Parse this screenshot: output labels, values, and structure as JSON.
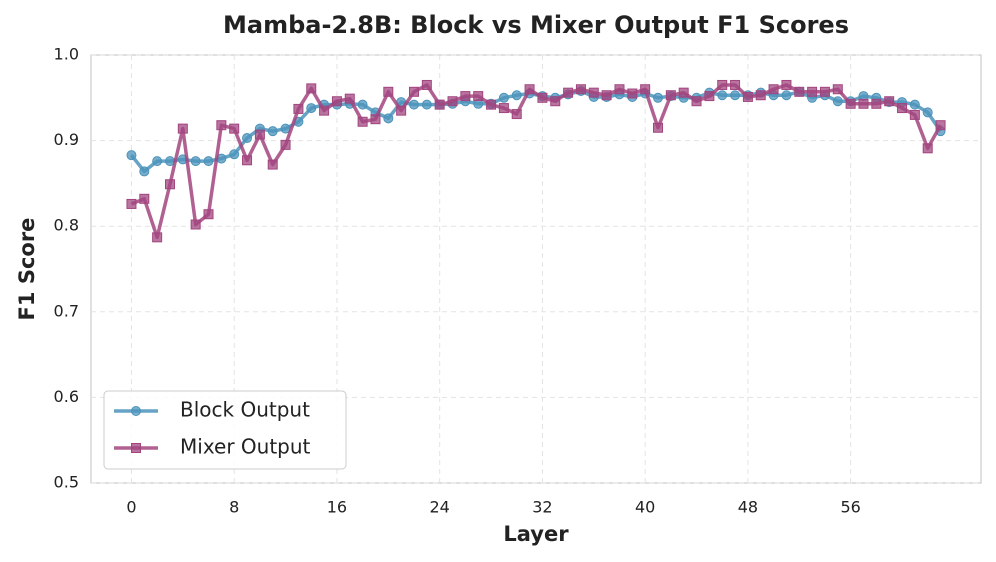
{
  "chart_data": {
    "type": "line",
    "title": "Mamba-2.8B: Block vs Mixer Output F1 Scores",
    "x_label": "Layer",
    "y_label": "F1 Score",
    "x": [
      0,
      1,
      2,
      3,
      4,
      5,
      6,
      7,
      8,
      9,
      10,
      11,
      12,
      13,
      14,
      15,
      16,
      17,
      18,
      19,
      20,
      21,
      22,
      23,
      24,
      25,
      26,
      27,
      28,
      29,
      30,
      31,
      32,
      33,
      34,
      35,
      36,
      37,
      38,
      39,
      40,
      41,
      42,
      43,
      44,
      45,
      46,
      47,
      48,
      49,
      50,
      51,
      52,
      53,
      54,
      55,
      56,
      57,
      58,
      59,
      60,
      61,
      62,
      63
    ],
    "series": [
      {
        "name": "Block Output",
        "color": "#4b93bb",
        "marker": "circle",
        "values": [
          0.883,
          0.864,
          0.876,
          0.876,
          0.878,
          0.876,
          0.876,
          0.879,
          0.884,
          0.903,
          0.914,
          0.911,
          0.914,
          0.922,
          0.938,
          0.942,
          0.942,
          0.943,
          0.942,
          0.933,
          0.926,
          0.945,
          0.942,
          0.942,
          0.942,
          0.943,
          0.946,
          0.943,
          0.943,
          0.95,
          0.953,
          0.955,
          0.952,
          0.95,
          0.954,
          0.958,
          0.951,
          0.951,
          0.954,
          0.951,
          0.955,
          0.95,
          0.952,
          0.95,
          0.95,
          0.956,
          0.953,
          0.953,
          0.953,
          0.956,
          0.953,
          0.953,
          0.957,
          0.95,
          0.953,
          0.946,
          0.946,
          0.952,
          0.95,
          0.945,
          0.945,
          0.942,
          0.933,
          0.911
        ]
      },
      {
        "name": "Mixer Output",
        "color": "#a2457f",
        "marker": "square",
        "values": [
          0.826,
          0.832,
          0.787,
          0.849,
          0.914,
          0.802,
          0.814,
          0.918,
          0.914,
          0.877,
          0.907,
          0.872,
          0.895,
          0.937,
          0.961,
          0.935,
          0.946,
          0.949,
          0.922,
          0.925,
          0.957,
          0.935,
          0.957,
          0.965,
          0.942,
          0.946,
          0.952,
          0.952,
          0.942,
          0.938,
          0.931,
          0.96,
          0.95,
          0.946,
          0.956,
          0.96,
          0.956,
          0.953,
          0.96,
          0.955,
          0.96,
          0.915,
          0.953,
          0.956,
          0.946,
          0.952,
          0.965,
          0.965,
          0.951,
          0.953,
          0.96,
          0.965,
          0.957,
          0.957,
          0.957,
          0.96,
          0.943,
          0.943,
          0.943,
          0.946,
          0.938,
          0.93,
          0.891,
          0.918
        ]
      }
    ],
    "xlim": [
      -3.15,
      66.15
    ],
    "xticks": [
      0,
      8,
      16,
      24,
      32,
      40,
      48,
      56
    ],
    "ylim": [
      0.5,
      1
    ],
    "yticks": [
      0.5,
      0.6,
      0.7,
      0.8,
      0.9,
      {
        "value": 1,
        "label": "1.0"
      }
    ],
    "grid": true,
    "legend": "lower left"
  }
}
